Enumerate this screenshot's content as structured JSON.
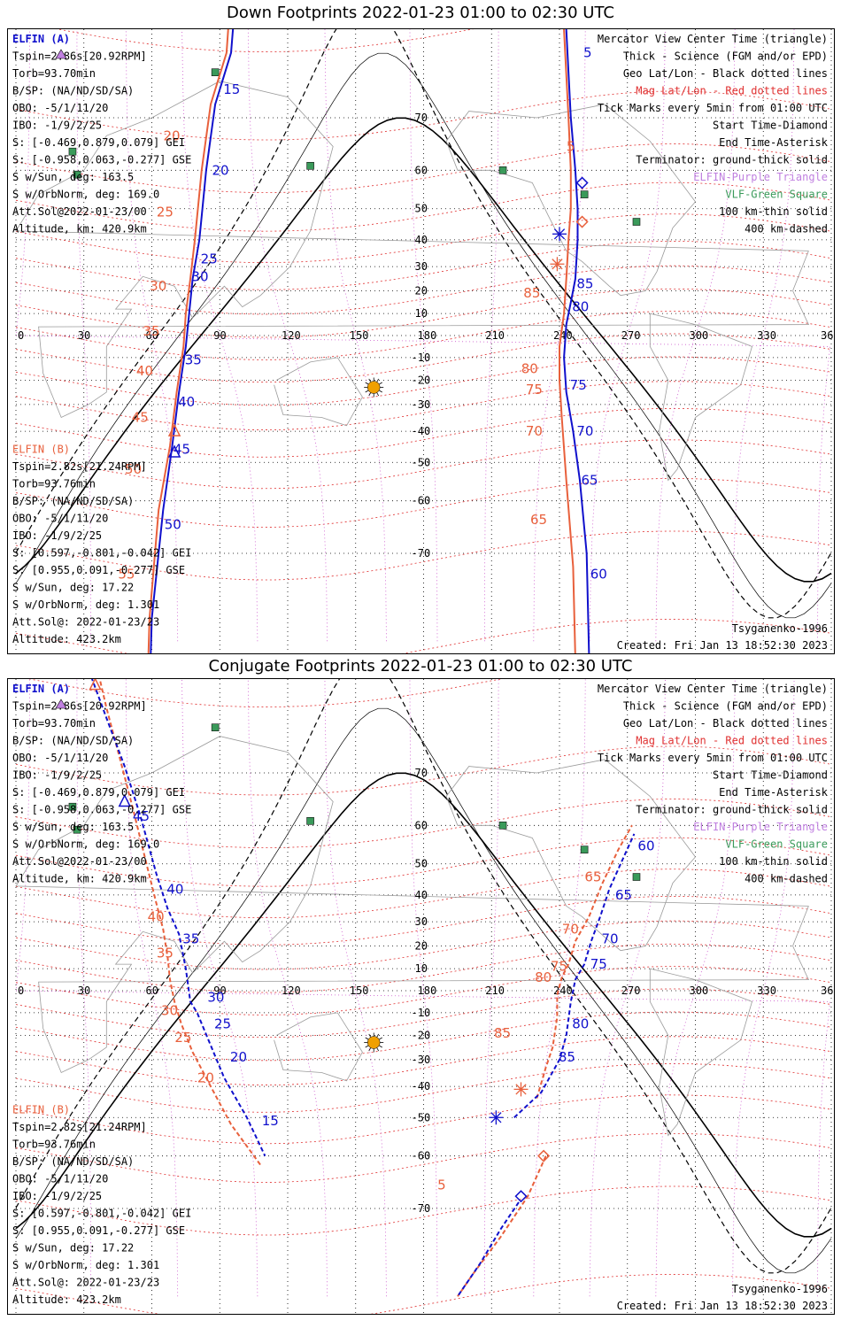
{
  "colors": {
    "probe_a": "#1010cc",
    "probe_b": "#e8603c",
    "elfin_triangle": "#c080e0",
    "vlf_square": "#3a9a5a",
    "sun": "#f0a000",
    "mag_grid": "#e03030",
    "geo_grid": "#000000",
    "geo_meridian": "#cc55cc"
  },
  "panels": [
    {
      "title": "Down Footprints 2022-01-23 01:00 to 02:30 UTC",
      "probe_a": {
        "name": "ELFIN (A)",
        "lines": [
          "Tspin=2.86s[20.92RPM]",
          "Torb=93.70min",
          "B/SP: (NA/ND/SD/SA)",
          "OBO: -5/1/11/20",
          "IBO: -1/9/2/25",
          "S: [-0.469,0.879,0.079] GEI",
          "S: [-0.958,0.063,-0.277] GSE",
          "S w/Sun, deg: 163.5",
          "S w/OrbNorm, deg: 169.0",
          "Att.Sol@2022-01-23/00",
          "Altitude, km: 420.9km"
        ]
      },
      "probe_b": {
        "name": "ELFIN (B)",
        "lines": [
          "Tspin=2.82s[21.24RPM]",
          "Torb=93.76min",
          "B/SP: (NA/ND/SD/SA)",
          "OBO: -5/1/11/20",
          "IBO: -1/9/2/25",
          "S: [0.597,-0.801,-0.042] GEI",
          "S: [0.955,0.091,-0.277] GSE",
          "S w/Sun, deg: 17.22",
          "S w/OrbNorm, deg: 1.301",
          "Att.Sol@: 2022-01-23/23",
          "Altitude: 423.2km"
        ]
      },
      "legend": [
        "Mercator View Center Time (triangle)",
        "Thick - Science (FGM and/or EPD)",
        "Geo Lat/Lon - Black dotted lines",
        "Mag Lat/Lon - Red dotted lines",
        "Tick Marks every 5min from 01:00 UTC",
        "Start Time-Diamond",
        "End Time-Asterisk",
        "Terminator: ground-thick solid",
        "ELFIN-Purple Triangle",
        "VLF-Green Square",
        "100 km-thin solid",
        "400 km-dashed"
      ],
      "model": "Tsyganenko-1996",
      "created": "Created: Fri Jan 13 18:52:30 2023",
      "ticks_a": [
        {
          "label": "15",
          "lon": 90,
          "lat": 74
        },
        {
          "label": "20",
          "lon": 85,
          "lat": 60
        },
        {
          "label": "25",
          "lon": 80,
          "lat": 33
        },
        {
          "label": "30",
          "lon": 76,
          "lat": 26
        },
        {
          "label": "35",
          "lon": 73,
          "lat": -11
        },
        {
          "label": "40",
          "lon": 70,
          "lat": -29
        },
        {
          "label": "45",
          "lon": 68,
          "lat": -46
        },
        {
          "label": "50",
          "lon": 64,
          "lat": -65
        },
        {
          "label": "5",
          "lon": 249,
          "lat": 78
        },
        {
          "label": "85",
          "lon": 246,
          "lat": 23
        },
        {
          "label": "80",
          "lon": 244,
          "lat": 13
        },
        {
          "label": "75",
          "lon": 243,
          "lat": -22
        },
        {
          "label": "70",
          "lon": 246,
          "lat": -40
        },
        {
          "label": "65",
          "lon": 248,
          "lat": -55
        },
        {
          "label": "60",
          "lon": 252,
          "lat": -73
        }
      ],
      "ticks_b": [
        {
          "label": "20",
          "lon": 69,
          "lat": 67
        },
        {
          "label": "25",
          "lon": 66,
          "lat": 49
        },
        {
          "label": "30",
          "lon": 63,
          "lat": 22
        },
        {
          "label": "35",
          "lon": 60,
          "lat": 2
        },
        {
          "label": "40",
          "lon": 57,
          "lat": -16
        },
        {
          "label": "45",
          "lon": 55,
          "lat": -35
        },
        {
          "label": "50",
          "lon": 52,
          "lat": -52
        },
        {
          "label": "55",
          "lon": 49,
          "lat": -73
        },
        {
          "label": "5",
          "lon": 247,
          "lat": 65
        },
        {
          "label": "85",
          "lon": 228,
          "lat": 19
        },
        {
          "label": "80",
          "lon": 227,
          "lat": -15
        },
        {
          "label": "75",
          "lon": 229,
          "lat": -24
        },
        {
          "label": "70",
          "lon": 229,
          "lat": -40
        },
        {
          "label": "65",
          "lon": 231,
          "lat": -64
        }
      ],
      "track_a": [
        [
          103,
          89
        ],
        [
          95,
          78
        ],
        [
          88,
          72
        ],
        [
          84,
          60
        ],
        [
          81,
          40
        ],
        [
          78,
          25
        ],
        [
          75,
          -5
        ],
        [
          72,
          -25
        ],
        [
          69,
          -45
        ],
        [
          65,
          -62
        ],
        [
          60,
          -78
        ],
        [
          57,
          -89
        ]
      ],
      "track_a2": [
        [
          241,
          89
        ],
        [
          243,
          80
        ],
        [
          245,
          70
        ],
        [
          247,
          60
        ],
        [
          248,
          50
        ],
        [
          248,
          40
        ],
        [
          247,
          25
        ],
        [
          245,
          15
        ],
        [
          243,
          5
        ],
        [
          242,
          -10
        ],
        [
          243,
          -25
        ],
        [
          246,
          -40
        ],
        [
          249,
          -55
        ],
        [
          252,
          -70
        ],
        [
          255,
          -89
        ]
      ],
      "track_b": [
        [
          100,
          89
        ],
        [
          93,
          78
        ],
        [
          86,
          72
        ],
        [
          82,
          60
        ],
        [
          79,
          40
        ],
        [
          77,
          25
        ],
        [
          75,
          10
        ],
        [
          74,
          -5
        ],
        [
          71,
          -25
        ],
        [
          68,
          -45
        ],
        [
          63,
          -62
        ],
        [
          59,
          -78
        ],
        [
          56,
          -89
        ]
      ],
      "track_b2": [
        [
          240,
          89
        ],
        [
          242,
          80
        ],
        [
          244,
          70
        ],
        [
          245,
          60
        ],
        [
          245,
          50
        ],
        [
          244,
          40
        ],
        [
          243,
          25
        ],
        [
          242,
          10
        ],
        [
          240,
          -5
        ],
        [
          240,
          -20
        ],
        [
          241,
          -35
        ],
        [
          243,
          -55
        ],
        [
          246,
          -72
        ],
        [
          249,
          -89
        ]
      ],
      "markers": {
        "start_a": {
          "lon": 250,
          "lat": 57
        },
        "start_b": {
          "lon": 250,
          "lat": 46
        },
        "end_a": {
          "lon": 240,
          "lat": 42
        },
        "end_b": {
          "lon": 239,
          "lat": 31
        },
        "center_a": {
          "lon": 70,
          "lat": -47
        },
        "center_b": {
          "lon": 70,
          "lat": -40
        }
      }
    },
    {
      "title": "Conjugate Footprints 2022-01-23 01:00 to 02:30 UTC",
      "probe_a": {
        "name": "ELFIN (A)",
        "lines": [
          "Tspin=2.86s[20.92RPM]",
          "Torb=93.70min",
          "B/SP: (NA/ND/SD/SA)",
          "OBO: -5/1/11/20",
          "IBO: -1/9/2/25",
          "S: [-0.469,0.879,0.079] GEI",
          "S: [-0.958,0.063,-0.277] GSE",
          "S w/Sun, deg: 163.5",
          "S w/OrbNorm, deg: 169.0",
          "Att.Sol@2022-01-23/00",
          "Altitude, km: 420.9km"
        ]
      },
      "probe_b": {
        "name": "ELFIN (B)",
        "lines": [
          "Tspin=2.82s[21.24RPM]",
          "Torb=93.76min",
          "B/SP: (NA/ND/SD/SA)",
          "OBO: -5/1/11/20",
          "IBO: -1/9/2/25",
          "S: [0.597,-0.801,-0.042] GEI",
          "S: [0.955,0.091,-0.277] GSE",
          "S w/Sun, deg: 17.22",
          "S w/OrbNorm, deg: 1.301",
          "Att.Sol@: 2022-01-23/23",
          "Altitude: 423.2km"
        ]
      },
      "legend": [
        "Mercator View Center Time (triangle)",
        "Thick - Science (FGM and/or EPD)",
        "Geo Lat/Lon - Black dotted lines",
        "Mag Lat/Lon - Red dotted lines",
        "Tick Marks every 5min from 01:00 UTC",
        "Start Time-Diamond",
        "End Time-Asterisk",
        "Terminator: ground-thick solid",
        "ELFIN-Purple Triangle",
        "VLF-Green Square",
        "100 km-thin solid",
        "400 km-dashed"
      ],
      "model": "Tsyganenko-1996",
      "created": "Created: Fri Jan 13 18:52:30 2023",
      "ticks_a": [
        {
          "label": "45",
          "lon": 50,
          "lat": 62
        },
        {
          "label": "40",
          "lon": 65,
          "lat": 42
        },
        {
          "label": "35",
          "lon": 72,
          "lat": 23
        },
        {
          "label": "30",
          "lon": 83,
          "lat": -3
        },
        {
          "label": "25",
          "lon": 86,
          "lat": -15
        },
        {
          "label": "20",
          "lon": 93,
          "lat": -29
        },
        {
          "label": "15",
          "lon": 107,
          "lat": -51
        },
        {
          "label": "80",
          "lon": 244,
          "lat": -15
        },
        {
          "label": "85",
          "lon": 238,
          "lat": -29
        },
        {
          "label": "75",
          "lon": 252,
          "lat": 12
        },
        {
          "label": "70",
          "lon": 257,
          "lat": 23
        },
        {
          "label": "65",
          "lon": 263,
          "lat": 40
        },
        {
          "label": "60",
          "lon": 273,
          "lat": 55
        }
      ],
      "ticks_b": [
        {
          "label": "40",
          "lon": 62,
          "lat": 32
        },
        {
          "label": "35",
          "lon": 66,
          "lat": 17
        },
        {
          "label": "30",
          "lon": 68,
          "lat": -9
        },
        {
          "label": "25",
          "lon": 74,
          "lat": -21
        },
        {
          "label": "20",
          "lon": 84,
          "lat": -37
        },
        {
          "label": "85",
          "lon": 215,
          "lat": -19
        },
        {
          "label": "80",
          "lon": 233,
          "lat": 6
        },
        {
          "label": "75",
          "lon": 240,
          "lat": 11
        },
        {
          "label": "70",
          "lon": 245,
          "lat": 27
        },
        {
          "label": "65",
          "lon": 255,
          "lat": 46
        },
        {
          "label": "5",
          "lon": 190,
          "lat": -66
        }
      ],
      "track_a": [
        [
          30,
          82
        ],
        [
          40,
          77
        ],
        [
          48,
          71
        ],
        [
          55,
          62
        ],
        [
          62,
          47
        ],
        [
          67,
          35
        ],
        [
          72,
          25
        ],
        [
          75,
          10
        ],
        [
          77,
          -5
        ],
        [
          80,
          -10
        ],
        [
          85,
          -22
        ],
        [
          92,
          -37
        ],
        [
          102,
          -50
        ],
        [
          110,
          -60
        ]
      ],
      "track_a2": [
        [
          220,
          -50
        ],
        [
          232,
          -42
        ],
        [
          240,
          -30
        ],
        [
          243,
          -20
        ],
        [
          245,
          -5
        ],
        [
          247,
          5
        ],
        [
          251,
          12
        ],
        [
          254,
          22
        ],
        [
          258,
          32
        ],
        [
          262,
          42
        ],
        [
          267,
          50
        ],
        [
          273,
          58
        ]
      ],
      "track_a3": [
        [
          222,
          -69
        ],
        [
          214,
          -73
        ],
        [
          205,
          -77
        ],
        [
          195,
          -80
        ]
      ],
      "track_b": [
        [
          33,
          83
        ],
        [
          40,
          78
        ],
        [
          46,
          72
        ],
        [
          52,
          63
        ],
        [
          58,
          49
        ],
        [
          62,
          37
        ],
        [
          65,
          27
        ],
        [
          67,
          15
        ],
        [
          68,
          5
        ],
        [
          70,
          -5
        ],
        [
          73,
          -15
        ],
        [
          78,
          -27
        ],
        [
          86,
          -40
        ],
        [
          95,
          -52
        ],
        [
          108,
          -62
        ]
      ],
      "track_b2": [
        [
          230,
          -44
        ],
        [
          234,
          -33
        ],
        [
          237,
          -25
        ],
        [
          239,
          -12
        ],
        [
          239,
          -2
        ],
        [
          241,
          6
        ],
        [
          244,
          12
        ],
        [
          247,
          22
        ],
        [
          253,
          32
        ],
        [
          259,
          44
        ],
        [
          266,
          54
        ],
        [
          272,
          60
        ]
      ],
      "track_b3": [
        [
          234,
          -60
        ],
        [
          226,
          -68
        ],
        [
          214,
          -74
        ],
        [
          202,
          -78
        ],
        [
          195,
          -80
        ]
      ],
      "markers": {
        "start_a": {
          "lon": 223,
          "lat": -68
        },
        "start_b": {
          "lon": 233,
          "lat": -60
        },
        "end_a": {
          "lon": 212,
          "lat": -50
        },
        "end_b": {
          "lon": 223,
          "lat": -41
        },
        "center_a": {
          "lon": 48,
          "lat": 65
        },
        "center_b": {
          "lon": 35,
          "lat": 80
        }
      }
    }
  ],
  "shared": {
    "lon_labels": [
      "0",
      "30",
      "60",
      "90",
      "120",
      "150",
      "180",
      "210",
      "240",
      "270",
      "300",
      "330",
      "360"
    ],
    "lat_labels": [
      "70",
      "60",
      "50",
      "40",
      "30",
      "20",
      "10",
      "-10",
      "-20",
      "-30",
      "-40",
      "-50",
      "-60",
      "-70"
    ],
    "vlf_sites": [
      {
        "lon": 25,
        "lat": 64
      },
      {
        "lon": 27,
        "lat": 59
      },
      {
        "lon": 88,
        "lat": 76
      },
      {
        "lon": 130,
        "lat": 61
      },
      {
        "lon": 215,
        "lat": 60
      },
      {
        "lon": 251,
        "lat": 54
      },
      {
        "lon": 274,
        "lat": 46
      }
    ],
    "sun": {
      "lon": 158,
      "lat": -23
    }
  }
}
